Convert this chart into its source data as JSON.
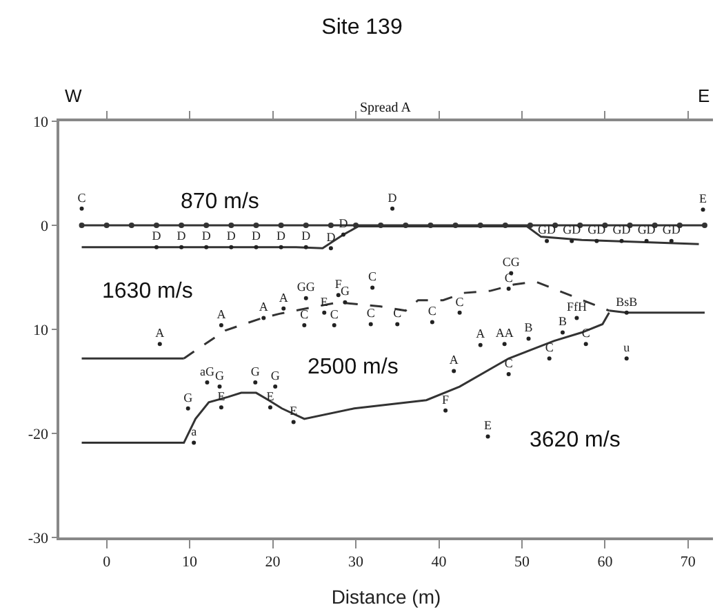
{
  "chart_data": {
    "type": "line",
    "title": "Site 139",
    "xlabel": "Distance (m)",
    "xlim": [
      -5.7,
      73
    ],
    "xticks": [
      0,
      10,
      20,
      30,
      40,
      50,
      60,
      70
    ],
    "ylim": [
      -30,
      10
    ],
    "yticks": [
      -30,
      -20,
      {
        "value": -10,
        "label": "10"
      },
      0,
      10
    ],
    "annotations": [
      "W",
      "E",
      "Spread A",
      "870 m/s",
      "1630 m/s",
      "2500 m/s",
      "3620 m/s"
    ],
    "series": [
      {
        "color": "#333333",
        "marker": "circle",
        "line_style": "solid",
        "x": [
          -3,
          0,
          3,
          6,
          9,
          12,
          15,
          18,
          21,
          24,
          27,
          30,
          33,
          36,
          39,
          42,
          45,
          48,
          51,
          54,
          57,
          60,
          63,
          66,
          69,
          72
        ],
        "values": [
          0,
          0,
          0,
          0,
          0,
          0,
          0,
          0,
          0,
          0,
          0,
          0,
          0,
          0,
          0,
          0,
          0,
          0,
          0,
          0,
          0,
          0,
          0,
          0,
          0,
          0
        ]
      },
      {
        "color": "#333333",
        "marker": "none",
        "line_style": "solid",
        "x": [
          -3,
          22.8,
          26,
          28.5,
          30.3,
          38.5,
          46.2,
          50.6,
          52.3,
          57.2,
          71.3
        ],
        "values": [
          -2.1,
          -2.1,
          -2.2,
          -0.9,
          -0.1,
          -0.1,
          -0.1,
          -0.1,
          -1.1,
          -1.4,
          -1.8
        ]
      },
      {
        "color": "#333333",
        "marker": "none",
        "line_style": "solid",
        "x": [
          -3,
          9.3
        ],
        "values": [
          -12.8,
          -12.8
        ]
      },
      {
        "color": "#333333",
        "marker": "none",
        "line_style": "dashed",
        "x": [
          9.3,
          11.3,
          14.3,
          18.4,
          20.8,
          24,
          27.9,
          33,
          36,
          37.5,
          40.5,
          43,
          46.2,
          49,
          51.6,
          60.5
        ],
        "values": [
          -12.8,
          -11.7,
          -10.1,
          -9,
          -8.5,
          -8,
          -7.4,
          -7.8,
          -8.2,
          -7.2,
          -7.2,
          -6.5,
          -6.3,
          -5.7,
          -5.4,
          -8.2
        ]
      },
      {
        "color": "#333333",
        "marker": "none",
        "line_style": "solid",
        "x": [
          60.5,
          62.6,
          72
        ],
        "values": [
          -8.2,
          -8.4,
          -8.4
        ]
      },
      {
        "color": "#333333",
        "marker": "none",
        "line_style": "solid",
        "x": [
          -3,
          9.3,
          10.7,
          12.3,
          14.6,
          16.2,
          18,
          19.5,
          21.1,
          23.8,
          29.8,
          38.5,
          42.5,
          48.4,
          53.9,
          57.2,
          59.7,
          60.5
        ],
        "values": [
          -20.9,
          -20.9,
          -18.6,
          -17,
          -16.5,
          -16.1,
          -16.1,
          -16.8,
          -17.6,
          -18.6,
          -17.6,
          -16.8,
          -15.5,
          -12.8,
          -11.1,
          -10.3,
          -9.5,
          -8.4
        ]
      },
      {
        "type": "scatter",
        "color": "#222222",
        "marker": "circle",
        "x": [
          -3,
          34.4,
          71.8,
          6,
          9,
          12,
          15,
          18,
          21,
          24,
          27,
          28.5,
          53,
          56,
          59,
          62,
          65,
          68
        ],
        "values": [
          1.6,
          1.6,
          1.5,
          -2.1,
          -2.1,
          -2.1,
          -2.1,
          -2.1,
          -2.1,
          -2.1,
          -2.2,
          -0.9,
          -1.5,
          -1.5,
          -1.5,
          -1.5,
          -1.5,
          -1.5
        ],
        "value_labels": [
          "C",
          "D",
          "E",
          "D",
          "D",
          "D",
          "D",
          "D",
          "D",
          "D",
          "D",
          "D",
          "GD",
          "GD",
          "GD",
          "GD",
          "GD",
          "GD"
        ]
      },
      {
        "type": "scatter",
        "color": "#222222",
        "marker": "circle",
        "x": [
          6.4,
          13.8,
          18.9,
          21.3,
          24,
          27.9,
          28.7,
          23.8,
          27.4,
          26.2,
          32,
          31.8,
          35,
          39.2,
          42.5,
          48.4,
          48.7,
          62.6
        ],
        "values": [
          -11.4,
          -9.6,
          -8.9,
          -8,
          -7,
          -6.7,
          -7.4,
          -9.6,
          -9.6,
          -8.4,
          -6,
          -9.5,
          -9.5,
          -9.3,
          -8.4,
          -6.1,
          -4.6,
          -8.4
        ],
        "value_labels": [
          "A",
          "A",
          "A",
          "A",
          "GG",
          "F",
          "G",
          "C",
          "C",
          "E",
          "C",
          "C",
          "C",
          "C",
          "C",
          "C",
          "CG",
          "BsB"
        ]
      },
      {
        "type": "scatter",
        "color": "#222222",
        "marker": "circle",
        "x": [
          45,
          47.9,
          50.8,
          41.8,
          48.4,
          53.3,
          54.9,
          56.6,
          57.7,
          62.6,
          45.9,
          40.8,
          12.1,
          13.6,
          17.9,
          20.3,
          13.8,
          19.7,
          22.5,
          9.8,
          10.5
        ],
        "values": [
          -11.5,
          -11.4,
          -10.9,
          -14,
          -14.3,
          -12.8,
          -10.3,
          -8.9,
          -11.4,
          -12.8,
          -20.3,
          -17.8,
          -15.1,
          -15.5,
          -15.1,
          -15.5,
          -17.5,
          -17.5,
          -18.9,
          -17.6,
          -20.9
        ],
        "value_labels": [
          "A",
          "AA",
          "B",
          "A",
          "C",
          "C",
          "B",
          "FfH",
          "C",
          "u",
          "E",
          "F",
          "aG",
          "G",
          "G",
          "G",
          "E",
          "E",
          "E",
          "G",
          "a"
        ]
      }
    ]
  }
}
